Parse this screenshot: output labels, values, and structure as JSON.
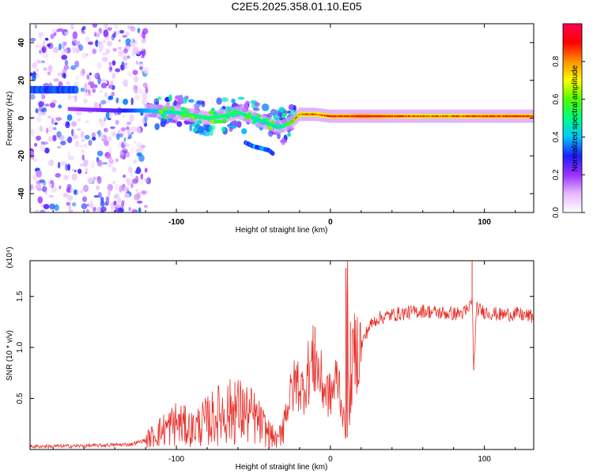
{
  "title": "C2E5.2025.358.01.10.E05",
  "chart_data": [
    {
      "type": "heatmap",
      "xlabel": "Height of straight line (km)",
      "ylabel": "Frequency (Hz)",
      "xlim": [
        -195,
        132
      ],
      "ylim": [
        -50,
        50
      ],
      "xticks": [
        -100,
        0,
        100
      ],
      "xtick_labels": [
        "-100",
        "0",
        "100"
      ],
      "yticks": [
        -40,
        -20,
        0,
        20,
        40
      ],
      "ytick_labels": [
        "-40",
        "-20",
        "0",
        "20",
        "40"
      ],
      "colorbar": {
        "label": "Normalized spectral amplitude",
        "range": [
          0,
          1
        ],
        "ticks": [
          0.0,
          0.2,
          0.4,
          0.6,
          0.8
        ],
        "tick_labels": [
          "0.0",
          "0.2",
          "0.4",
          "0.6",
          "0.8"
        ],
        "colors": [
          "#ffffff",
          "#e6b8ff",
          "#9b30ff",
          "#1e1eff",
          "#00c8ff",
          "#00ff80",
          "#50ff00",
          "#ffff00",
          "#ff9000",
          "#ff0000",
          "#ff0050"
        ]
      },
      "noise_region_x": [
        -195,
        -118
      ],
      "ridge": {
        "x": [
          -175,
          -140,
          -120,
          -100,
          -80,
          -70,
          -60,
          -50,
          -40,
          -34,
          -30,
          -25,
          -20,
          -10,
          0,
          10,
          20,
          40,
          60,
          80,
          100,
          132
        ],
        "freq": [
          5,
          4,
          4,
          3,
          0,
          1,
          3,
          0,
          -3,
          -5,
          -4,
          -2,
          2,
          2,
          1,
          1,
          1,
          1,
          1,
          1,
          1,
          1
        ],
        "amplitude": [
          0.2,
          0.3,
          0.45,
          0.55,
          0.6,
          0.6,
          0.6,
          0.55,
          0.5,
          0.55,
          0.6,
          0.7,
          0.8,
          0.8,
          0.85,
          0.85,
          0.9,
          0.85,
          0.8,
          0.8,
          0.85,
          0.85
        ]
      },
      "side_band": {
        "x": [
          -195,
          -185,
          -175,
          -165
        ],
        "freq": [
          15,
          15,
          15,
          15
        ]
      },
      "branch": {
        "x": [
          -55,
          -50,
          -45,
          -40,
          -37
        ],
        "freq": [
          -13,
          -15,
          -16,
          -17,
          -19
        ]
      }
    },
    {
      "type": "line",
      "xlabel": "Height of straight line (km)",
      "ylabel": "SNR (10 * v/v)",
      "y_multiplier_label": "(x10⁴)",
      "xlim": [
        -195,
        132
      ],
      "ylim": [
        0,
        18500
      ],
      "xticks": [
        -100,
        0,
        100
      ],
      "xtick_labels": [
        "-100",
        "0",
        "100"
      ],
      "yticks": [
        5000,
        10000,
        15000
      ],
      "ytick_labels": [
        "0.5",
        "1.0",
        "1.5"
      ],
      "color": "#e8302a",
      "x": [
        -195,
        -160,
        -130,
        -120,
        -110,
        -100,
        -90,
        -80,
        -70,
        -60,
        -50,
        -40,
        -34,
        -30,
        -26,
        -22,
        -18,
        -14,
        -10,
        -5,
        0,
        5,
        8,
        10,
        11,
        12,
        15,
        20,
        25,
        30,
        40,
        50,
        60,
        70,
        80,
        88,
        90,
        92,
        93,
        95,
        100,
        110,
        120,
        132
      ],
      "y": [
        300,
        350,
        500,
        900,
        1800,
        2600,
        2000,
        2800,
        3600,
        3800,
        3200,
        1600,
        800,
        3200,
        5200,
        6800,
        5800,
        7800,
        8800,
        6200,
        5200,
        7200,
        3800,
        1200,
        15500,
        3000,
        9500,
        10200,
        12000,
        12800,
        13200,
        13400,
        13600,
        13400,
        13300,
        13400,
        13800,
        15000,
        7800,
        13800,
        13500,
        13200,
        13300,
        13000
      ],
      "spikes": {
        "x": [
          -62,
          -57,
          -18,
          -10,
          10,
          11,
          13,
          88,
          92,
          93
        ],
        "y": [
          6600,
          5800,
          7200,
          12000,
          17800,
          1200,
          12500,
          14200,
          18500,
          8500
        ]
      }
    }
  ]
}
